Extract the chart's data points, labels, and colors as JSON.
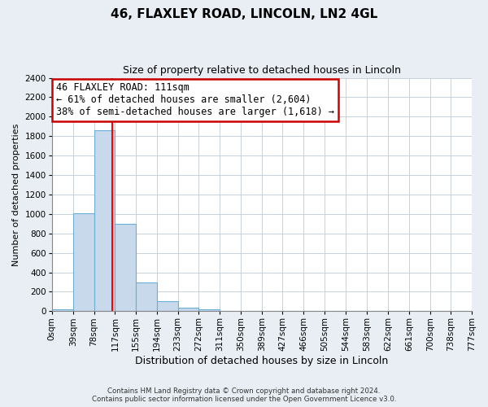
{
  "title": "46, FLAXLEY ROAD, LINCOLN, LN2 4GL",
  "subtitle": "Size of property relative to detached houses in Lincoln",
  "xlabel": "Distribution of detached houses by size in Lincoln",
  "ylabel": "Number of detached properties",
  "bin_labels": [
    "0sqm",
    "39sqm",
    "78sqm",
    "117sqm",
    "155sqm",
    "194sqm",
    "233sqm",
    "272sqm",
    "311sqm",
    "350sqm",
    "389sqm",
    "427sqm",
    "466sqm",
    "505sqm",
    "544sqm",
    "583sqm",
    "622sqm",
    "661sqm",
    "700sqm",
    "738sqm",
    "777sqm"
  ],
  "bin_edges": [
    0,
    39,
    78,
    117,
    155,
    194,
    233,
    272,
    311,
    350,
    389,
    427,
    466,
    505,
    544,
    583,
    622,
    661,
    700,
    738,
    777
  ],
  "bar_heights": [
    20,
    1010,
    1860,
    900,
    300,
    100,
    40,
    20,
    0,
    0,
    0,
    0,
    0,
    0,
    0,
    0,
    0,
    0,
    0,
    0
  ],
  "bar_color": "#c8d9ec",
  "bar_edge_color": "#6baed6",
  "ylim": [
    0,
    2400
  ],
  "yticks": [
    0,
    200,
    400,
    600,
    800,
    1000,
    1200,
    1400,
    1600,
    1800,
    2000,
    2200,
    2400
  ],
  "vline_x": 111,
  "vline_color": "red",
  "annotation_title": "46 FLAXLEY ROAD: 111sqm",
  "annotation_line1": "← 61% of detached houses are smaller (2,604)",
  "annotation_line2": "38% of semi-detached houses are larger (1,618) →",
  "annotation_box_color": "white",
  "annotation_box_edge_color": "#cc0000",
  "footer_line1": "Contains HM Land Registry data © Crown copyright and database right 2024.",
  "footer_line2": "Contains public sector information licensed under the Open Government Licence v3.0.",
  "background_color": "#e8eef4",
  "plot_background_color": "white",
  "grid_color": "#c8d0d8",
  "title_fontsize": 11,
  "subtitle_fontsize": 9,
  "xlabel_fontsize": 9,
  "ylabel_fontsize": 8,
  "tick_fontsize": 7.5
}
